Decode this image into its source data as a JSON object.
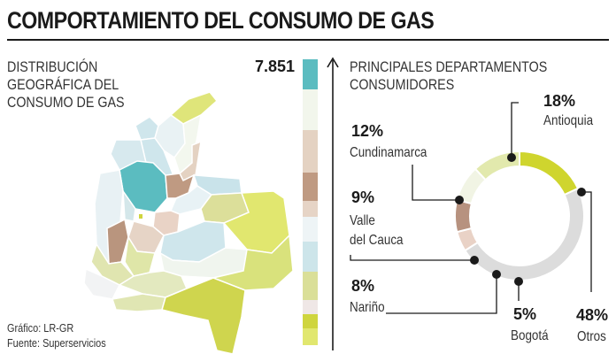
{
  "header": {
    "title": "COMPORTAMIENTO DEL CONSUMO DE GAS"
  },
  "map_section": {
    "subtitle_lines": [
      "DISTRIBUCIÓN",
      "GEOGRÁFICA DEL",
      "CONSUMO DE GAS"
    ],
    "top_value": "7.851"
  },
  "scale_colors": [
    "#5bbcc0",
    "#f2f6ec",
    "#e4d2c2",
    "#bf9a82",
    "#e6d4c6",
    "#eef4f6",
    "#cde5ea",
    "#dadf98",
    "#efe7e6",
    "#cfd53e",
    "#e1e76f"
  ],
  "right_section": {
    "subtitle_lines": [
      "PRINCIPALES DEPARTAMENTOS",
      "CONSUMIDORES"
    ]
  },
  "footer": {
    "source_lines": [
      "Gráfico: LR-GR",
      "Fuente: Superservicios"
    ]
  },
  "chart_data": {
    "type": "pie",
    "title": "PRINCIPALES DEPARTAMENTOS CONSUMIDORES",
    "categories": [
      "Antioquia",
      "Otros",
      "Bogotá",
      "Nariño",
      "Valle del Cauca",
      "Cundinamarca"
    ],
    "values": [
      18,
      48,
      5,
      8,
      9,
      12
    ],
    "labels": [
      "18%",
      "48%",
      "5%",
      "8%",
      "9%",
      "12%"
    ],
    "colors": [
      "#cfd52e",
      "#dcdcdc",
      "#e9d2c6",
      "#b7927f",
      "#f1f4e4",
      "#e2e9ad"
    ],
    "display_labels": {
      "antioquia": "Antioquia",
      "otros": "Otros",
      "bogota": "Bogotá",
      "narino": "Nariño",
      "valle_1": "Valle",
      "valle_2": "del Cauca",
      "cundinamarca": "Cundinamarca"
    }
  }
}
